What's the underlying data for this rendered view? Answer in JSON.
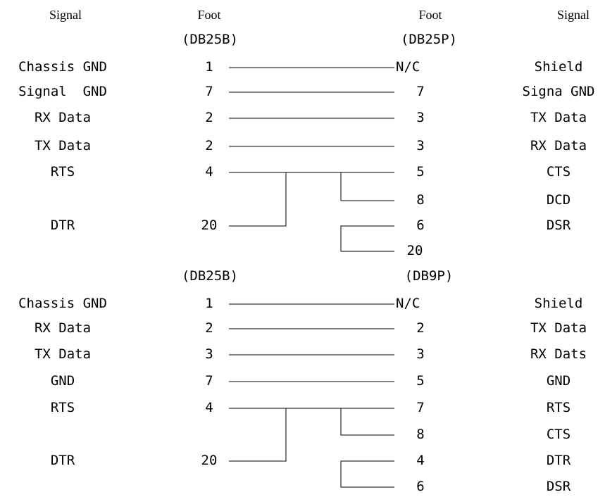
{
  "header": {
    "left_signal": "Signal",
    "left_foot": "Foot",
    "right_foot": "Foot",
    "right_signal": "Signal"
  },
  "sections": [
    {
      "left_connector": "(DB25B)",
      "right_connector": "(DB25P)",
      "rows": [
        {
          "left_signal": "Chassis GND",
          "left_pin": "1",
          "right_pin": "N/C",
          "right_signal": "Shield"
        },
        {
          "left_signal": "Signal  GND",
          "left_pin": "7",
          "right_pin": "7",
          "right_signal": "Signa GND"
        },
        {
          "left_signal": "RX Data",
          "left_pin": "2",
          "right_pin": "3",
          "right_signal": "TX Data"
        },
        {
          "left_signal": "TX Data",
          "left_pin": "2",
          "right_pin": "3",
          "right_signal": "RX Data"
        },
        {
          "left_signal": "RTS",
          "left_pin": "4",
          "right_pin": "5",
          "right_signal": "CTS"
        },
        {
          "left_signal": "",
          "left_pin": "",
          "right_pin": "8",
          "right_signal": "DCD"
        },
        {
          "left_signal": "DTR",
          "left_pin": "20",
          "right_pin": "6",
          "right_signal": "DSR"
        },
        {
          "left_signal": "",
          "left_pin": "",
          "right_pin": "20",
          "right_signal": ""
        }
      ]
    },
    {
      "left_connector": "(DB25B)",
      "right_connector": "(DB9P)",
      "rows": [
        {
          "left_signal": "Chassis GND",
          "left_pin": "1",
          "right_pin": "N/C",
          "right_signal": "Shield"
        },
        {
          "left_signal": "RX Data",
          "left_pin": "2",
          "right_pin": "2",
          "right_signal": "TX Data"
        },
        {
          "left_signal": "TX Data",
          "left_pin": "3",
          "right_pin": "3",
          "right_signal": "RX Dats"
        },
        {
          "left_signal": "GND",
          "left_pin": "7",
          "right_pin": "5",
          "right_signal": "GND"
        },
        {
          "left_signal": "RTS",
          "left_pin": "4",
          "right_pin": "7",
          "right_signal": "RTS"
        },
        {
          "left_signal": "",
          "left_pin": "",
          "right_pin": "8",
          "right_signal": "CTS"
        },
        {
          "left_signal": "DTR",
          "left_pin": "20",
          "right_pin": "4",
          "right_signal": "DTR"
        },
        {
          "left_signal": "",
          "left_pin": "",
          "right_pin": "6",
          "right_signal": "DSR"
        }
      ]
    }
  ]
}
